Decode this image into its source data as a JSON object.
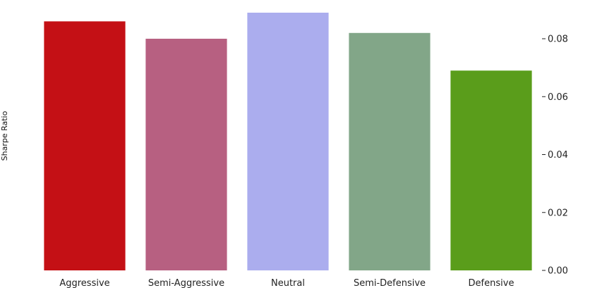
{
  "chart_data": {
    "type": "bar",
    "title": "",
    "xlabel": "",
    "ylabel": "Sharpe Ratio",
    "categories": [
      "Aggressive",
      "Semi-Aggressive",
      "Neutral",
      "Semi-Defensive",
      "Defensive"
    ],
    "values": [
      0.086,
      0.08,
      0.089,
      0.082,
      0.069
    ],
    "colors": [
      "#c41015",
      "#b76081",
      "#abadee",
      "#82a688",
      "#5a9d1b"
    ],
    "ylim": [
      0,
      0.089
    ],
    "yticks": [
      0.0,
      0.02,
      0.04,
      0.06,
      0.08
    ],
    "ytick_labels": [
      "0.00",
      "0.02",
      "0.04",
      "0.06",
      "0.08"
    ],
    "y_axis_side": "right",
    "grid": false,
    "legend": "none"
  }
}
